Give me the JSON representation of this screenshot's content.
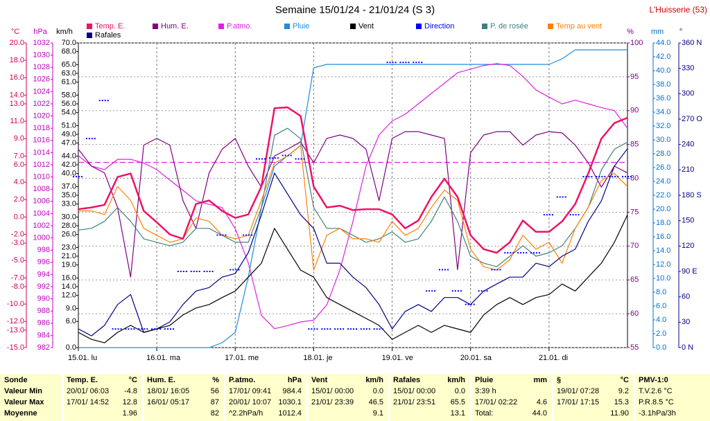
{
  "chart_data": {
    "type": "line",
    "title": "Semaine 15/01/24 - 21/01/24 (S 3)",
    "station": "L'Huisserie (53)",
    "x": [
      0,
      4,
      8,
      12,
      16,
      20,
      24,
      28,
      32,
      36,
      40,
      44,
      48,
      52,
      56,
      60,
      64,
      68,
      72,
      76,
      80,
      84,
      88,
      92,
      96,
      100,
      104,
      108,
      112,
      116,
      120,
      124,
      128,
      132,
      136,
      140,
      144,
      148,
      152,
      156,
      160,
      164,
      168
    ],
    "xlim": [
      0,
      168
    ],
    "xticks": [
      {
        "value": 0,
        "label": "15.01. lu"
      },
      {
        "value": 24,
        "label": "16.01. ma"
      },
      {
        "value": 48,
        "label": "17.01. me"
      },
      {
        "value": 72,
        "label": "18.01. je"
      },
      {
        "value": 96,
        "label": "19.01. ve"
      },
      {
        "value": 120,
        "label": "20.01. sa"
      },
      {
        "value": 144,
        "label": "21.01. di"
      }
    ],
    "axes": [
      {
        "unit": "°C",
        "color": "#d0005a",
        "lim": [
          -15,
          20
        ],
        "ticks": [
          {
            "value": 20,
            "label": "20.0"
          },
          {
            "value": 18,
            "label": "18.0"
          },
          {
            "value": 16,
            "label": "16.0"
          },
          {
            "value": 14,
            "label": "14.0"
          },
          {
            "value": 13,
            "label": "13.0"
          },
          {
            "value": 11,
            "label": "11.0"
          },
          {
            "value": 9,
            "label": "9.0"
          },
          {
            "value": 7,
            "label": "7.0"
          },
          {
            "value": 6,
            "label": "6.0"
          },
          {
            "value": 4,
            "label": "4.0"
          },
          {
            "value": 2,
            "label": "2.0"
          },
          {
            "value": 0,
            "label": "0.0"
          },
          {
            "value": -2,
            "label": "-2.0"
          },
          {
            "value": -3,
            "label": "-3.0"
          },
          {
            "value": -5,
            "label": "-5.0"
          },
          {
            "value": -7,
            "label": "-7.0"
          },
          {
            "value": -8,
            "label": "-8.0"
          },
          {
            "value": -10,
            "label": "-10.0"
          },
          {
            "value": -12,
            "label": "-12.0"
          },
          {
            "value": -13,
            "label": "-13.0"
          },
          {
            "value": -15,
            "label": "-15.0"
          }
        ]
      },
      {
        "unit": "hPa",
        "color": "#c000c0",
        "lim": [
          982,
          1032
        ],
        "ticks": [
          1032,
          1030,
          1028,
          1026,
          1024,
          1022,
          1020,
          1018,
          1016,
          1014,
          1012,
          1010,
          1008,
          1006,
          1004,
          1002,
          1000,
          998,
          996,
          994,
          992,
          990,
          988,
          986,
          984,
          982
        ]
      },
      {
        "unit": "km/h",
        "color": "#000000",
        "lim": [
          0,
          70
        ],
        "ticks": [
          {
            "value": 70,
            "label": "70.0"
          },
          {
            "value": 68,
            "label": "68.0"
          },
          {
            "value": 65,
            "label": "65.0"
          },
          {
            "value": 63,
            "label": "63.0"
          },
          {
            "value": 61,
            "label": "61.0"
          },
          {
            "value": 58,
            "label": "58.0"
          },
          {
            "value": 56,
            "label": "56.0"
          },
          {
            "value": 54,
            "label": "54.0"
          },
          {
            "value": 51,
            "label": "51.0"
          },
          {
            "value": 49,
            "label": "49.0"
          },
          {
            "value": 47,
            "label": "47.0"
          },
          {
            "value": 44,
            "label": "44.0"
          },
          {
            "value": 42,
            "label": "42.0"
          },
          {
            "value": 40,
            "label": "40.0"
          },
          {
            "value": 37,
            "label": "37.0"
          },
          {
            "value": 35,
            "label": "35.0"
          },
          {
            "value": 33,
            "label": "33.0"
          },
          {
            "value": 30,
            "label": "30.0"
          },
          {
            "value": 28,
            "label": "28.0"
          },
          {
            "value": 26,
            "label": "26.0"
          },
          {
            "value": 23,
            "label": "23.0"
          },
          {
            "value": 21,
            "label": "21.0"
          },
          {
            "value": 19,
            "label": "19.0"
          },
          {
            "value": 16,
            "label": "16.0"
          },
          {
            "value": 14,
            "label": "14.0"
          },
          {
            "value": 12,
            "label": "12.0"
          },
          {
            "value": 9,
            "label": "9.0"
          },
          {
            "value": 6,
            "label": "6.0"
          },
          {
            "value": 0,
            "label": "0.0"
          }
        ]
      },
      {
        "unit": "%",
        "color": "#800080",
        "lim": [
          55,
          100
        ],
        "grid": true,
        "ticks": [
          100,
          95,
          90,
          85,
          80,
          75,
          70,
          65,
          60,
          55
        ]
      },
      {
        "unit": "mm",
        "color": "#0070d0",
        "lim": [
          0,
          44
        ],
        "ticks": [
          {
            "value": 44,
            "label": "44.0"
          },
          {
            "value": 42,
            "label": "42.0"
          },
          {
            "value": 40,
            "label": "40.0"
          },
          {
            "value": 38,
            "label": "38.0"
          },
          {
            "value": 36,
            "label": "36.0"
          },
          {
            "value": 34,
            "label": "34.0"
          },
          {
            "value": 32,
            "label": "32.0"
          },
          {
            "value": 30,
            "label": "30.0"
          },
          {
            "value": 28,
            "label": "28.0"
          },
          {
            "value": 26,
            "label": "26.0"
          },
          {
            "value": 24,
            "label": "24.0"
          },
          {
            "value": 22,
            "label": "22.0"
          },
          {
            "value": 20,
            "label": "20.0"
          },
          {
            "value": 18,
            "label": "18.0"
          },
          {
            "value": 16,
            "label": "16.0"
          },
          {
            "value": 14,
            "label": "14.0"
          },
          {
            "value": 12,
            "label": "12.0"
          },
          {
            "value": 10,
            "label": "10.0"
          },
          {
            "value": 8,
            "label": "8.0"
          },
          {
            "value": 6,
            "label": "6.0"
          },
          {
            "value": 4,
            "label": "4.0"
          },
          {
            "value": 2,
            "label": "2.0"
          },
          {
            "value": 0,
            "label": "0.0"
          }
        ]
      },
      {
        "unit": "°",
        "color": "#000080",
        "lim": [
          0,
          360
        ],
        "ticks": [
          {
            "value": 360,
            "label": "360 N"
          },
          330,
          300,
          {
            "value": 270,
            "label": "270 O"
          },
          240,
          210,
          {
            "value": 180,
            "label": "180 S"
          },
          150,
          120,
          {
            "value": 90,
            "label": "90 E"
          },
          60,
          30,
          {
            "value": 0,
            "label": "0 N"
          }
        ]
      }
    ],
    "series": [
      {
        "name": "Temp. E.",
        "color": "#ee1166",
        "axis": 0,
        "width": 2.5,
        "values": [
          0.9,
          1.1,
          1.4,
          4.6,
          5.0,
          0.7,
          -0.6,
          -2.0,
          -2.5,
          1.5,
          1.9,
          0.7,
          -0.1,
          0.3,
          3.5,
          12.5,
          12.6,
          11.6,
          3.5,
          1.1,
          1.3,
          0.8,
          0.9,
          0.9,
          0.3,
          -1.3,
          -0.4,
          2.3,
          4.4,
          2.3,
          -2.1,
          -3.7,
          -4.1,
          -2.9,
          -0.4,
          -1.7,
          -1.7,
          -0.5,
          1.5,
          5.0,
          9.0,
          10.8,
          11.4
        ]
      },
      {
        "name": "Hum. E.",
        "color": "#800080",
        "axis": 3,
        "values": [
          84.3,
          81.8,
          80.8,
          75.7,
          65.4,
          84.9,
          85.9,
          84.9,
          76.7,
          72.6,
          80.8,
          84.3,
          85.9,
          81.8,
          78.7,
          83.3,
          84.3,
          85.4,
          82.3,
          85.9,
          86.4,
          85.9,
          84.3,
          76.7,
          85.9,
          86.9,
          86.9,
          86.4,
          85.9,
          66.5,
          83.8,
          86.4,
          86.9,
          86.9,
          84.9,
          86.4,
          86.9,
          86.7,
          84.9,
          82.3,
          78.7,
          81.8,
          80.8
        ]
      },
      {
        "name": "P.atmo.",
        "color": "#e020e0",
        "axis": 1,
        "values": [
          1013.5,
          1011.8,
          1011.2,
          1012.9,
          1012.9,
          1012.3,
          1011.2,
          1009.5,
          1007.8,
          1006.1,
          1005.5,
          1005.0,
          1001.5,
          995.9,
          987.3,
          985.1,
          985.6,
          986.2,
          986.5,
          989.0,
          994.7,
          1002.7,
          1011.8,
          1016.9,
          1019.2,
          1020.3,
          1022.0,
          1023.7,
          1025.4,
          1027.1,
          1027.7,
          1028.3,
          1028.6,
          1028.3,
          1026.5,
          1024.3,
          1023.1,
          1022.0,
          1022.6,
          1022.0,
          1021.4,
          1020.9,
          1018.0
        ]
      },
      {
        "name": "Pluie",
        "color": "#1e8ce0",
        "axis": 4,
        "values": [
          0,
          0,
          0,
          0,
          0,
          0,
          0,
          0,
          0,
          0,
          0,
          0.7,
          2.2,
          10.2,
          20.2,
          26.2,
          27.7,
          29.2,
          40.4,
          40.9,
          40.9,
          40.9,
          40.9,
          40.9,
          40.9,
          40.9,
          40.9,
          40.9,
          40.9,
          40.9,
          40.9,
          40.9,
          40.9,
          40.9,
          40.9,
          40.9,
          40.9,
          41.7,
          43.0,
          43.0,
          43.0,
          43.0,
          43.0
        ]
      },
      {
        "name": "Vent",
        "color": "#000000",
        "axis": 2,
        "values": [
          3.5,
          1.9,
          1.1,
          3.5,
          5.1,
          3.5,
          4.3,
          5.1,
          7.5,
          9.1,
          9.9,
          11.5,
          13.0,
          16.2,
          19.4,
          27.4,
          22.6,
          17.8,
          16.2,
          11.5,
          9.9,
          8.3,
          6.7,
          5.1,
          1.9,
          3.5,
          5.1,
          3.5,
          5.1,
          4.3,
          3.5,
          7.5,
          9.9,
          11.5,
          9.9,
          11.5,
          12.2,
          14.6,
          13.0,
          16.2,
          19.4,
          24.2,
          30.5
        ]
      },
      {
        "name": "Direction",
        "color": "#0000ff",
        "axis": 5,
        "style": "dots",
        "values": [
          202,
          247,
          292,
          22,
          22,
          22,
          22,
          22,
          90,
          90,
          90,
          133,
          92,
          133,
          223,
          224,
          227,
          223,
          22,
          22,
          22,
          22,
          22,
          22,
          337,
          337,
          337,
          67,
          92,
          67,
          51,
          67,
          92,
          112,
          112,
          112,
          157,
          178,
          157,
          202,
          202,
          202,
          202
        ]
      },
      {
        "name": "P. de rosée",
        "color": "#408080",
        "axis": 0,
        "values": [
          -1.5,
          -1.3,
          -0.5,
          1.1,
          -0.5,
          -2.5,
          -2.9,
          -3.3,
          -2.9,
          -1.3,
          -1.3,
          -2.1,
          -2.9,
          -2.9,
          1.1,
          9.4,
          10.2,
          9.0,
          1.1,
          -1.3,
          -1.3,
          -2.1,
          -2.9,
          -2.5,
          -1.7,
          -2.9,
          -2.5,
          -0.5,
          2.3,
          -0.5,
          -4.5,
          -5.3,
          -5.7,
          -4.5,
          -3.3,
          -4.5,
          -4.1,
          -3.3,
          -1.3,
          1.1,
          5.4,
          7.8,
          8.6
        ]
      },
      {
        "name": "Temp au vent",
        "color": "#ff8000",
        "axis": 0,
        "values": [
          0.7,
          0.7,
          0.3,
          3.5,
          1.9,
          -1.3,
          -2.1,
          -2.9,
          -2.5,
          -0.1,
          -0.5,
          -2.1,
          -2.5,
          -2.1,
          1.9,
          6.2,
          7.0,
          8.2,
          -6.1,
          -2.1,
          -1.3,
          -2.5,
          -2.5,
          -2.9,
          -0.5,
          -2.1,
          -1.3,
          1.1,
          3.1,
          1.9,
          -3.7,
          -5.7,
          -6.1,
          -4.9,
          -2.1,
          -3.7,
          -2.9,
          -5.3,
          -1.3,
          1.1,
          4.2,
          5.0,
          3.5
        ]
      },
      {
        "name": "Rafales",
        "color": "#000080",
        "axis": 2,
        "values": [
          4.3,
          2.7,
          5.1,
          9.9,
          12.2,
          3.5,
          4.3,
          5.9,
          9.9,
          13.0,
          13.8,
          16.2,
          17.0,
          21.8,
          30.5,
          40.1,
          35.3,
          30.5,
          27.4,
          19.4,
          19.4,
          16.2,
          13.8,
          9.9,
          4.3,
          8.3,
          9.9,
          8.3,
          11.5,
          11.5,
          9.9,
          13.0,
          14.6,
          16.2,
          16.2,
          19.4,
          18.6,
          21.0,
          22.6,
          29.0,
          33.7,
          41.7,
          45.7
        ]
      }
    ],
    "draw_order": [
      3,
      2,
      1,
      6,
      7,
      8,
      4,
      0,
      5
    ],
    "reference_lines": [
      {
        "axis": 1,
        "value": 1012.4,
        "color": "#e020e0"
      }
    ]
  },
  "table": {
    "columns": [
      {
        "header": "Sonde",
        "rows": [
          "Valeur Min",
          "Valeur Max",
          "Moyenne"
        ]
      },
      {
        "header": "Temp. E.",
        "unit": "°C",
        "rows": [
          {
            "left": "20/01/ 06:03",
            "right": "-4.8"
          },
          {
            "left": "17/01/ 14:52",
            "right": "12.8"
          },
          {
            "right": "1.96"
          }
        ]
      },
      {
        "header": "Hum. E.",
        "unit": "%",
        "rows": [
          {
            "left": "18/01/ 16:05",
            "right": "56"
          },
          {
            "left": "16/01/ 05:17",
            "right": "87"
          },
          {
            "right": "82"
          }
        ]
      },
      {
        "header": "P.atmo.",
        "unit": "hPa",
        "rows": [
          {
            "left": "17/01/ 09:41",
            "right": "984.4"
          },
          {
            "left": "20/01/ 10:07",
            "right": "1030.1"
          },
          {
            "left": "^2.2hPa/h",
            "right": "1012.4"
          }
        ]
      },
      {
        "header": "Vent",
        "unit": "km/h",
        "rows": [
          {
            "left": "15/01/ 00:00",
            "right": "0.0"
          },
          {
            "left": "21/01/ 23:39",
            "right": "46.5"
          },
          {
            "right": "9.1"
          }
        ]
      },
      {
        "header": "Rafales",
        "unit": "km/h",
        "rows": [
          {
            "left": "15/01/ 00:00",
            "right": "0.0"
          },
          {
            "left": "21/01/ 23:51",
            "right": "65.5"
          },
          {
            "right": "13.1"
          }
        ]
      },
      {
        "header": "Pluie",
        "unit": "mm",
        "rows": [
          {
            "left": "3:39 h"
          },
          {
            "left": "17/01/ 02:22",
            "right": "4.6"
          },
          {
            "left": "Total:",
            "right": "44.0"
          }
        ]
      },
      {
        "header": "§",
        "unit": "°C",
        "rows": [
          {
            "left": "19/01/ 07:28",
            "right": "9.2"
          },
          {
            "left": "17/01/ 17:15",
            "right": "15.3"
          },
          {
            "right": "11.90"
          }
        ]
      },
      {
        "header": "PMV-1:0",
        "rows": [
          "T.V.2.6 °C",
          "P.R.8.5 °C",
          "-3.1hPa/3h"
        ]
      }
    ]
  }
}
